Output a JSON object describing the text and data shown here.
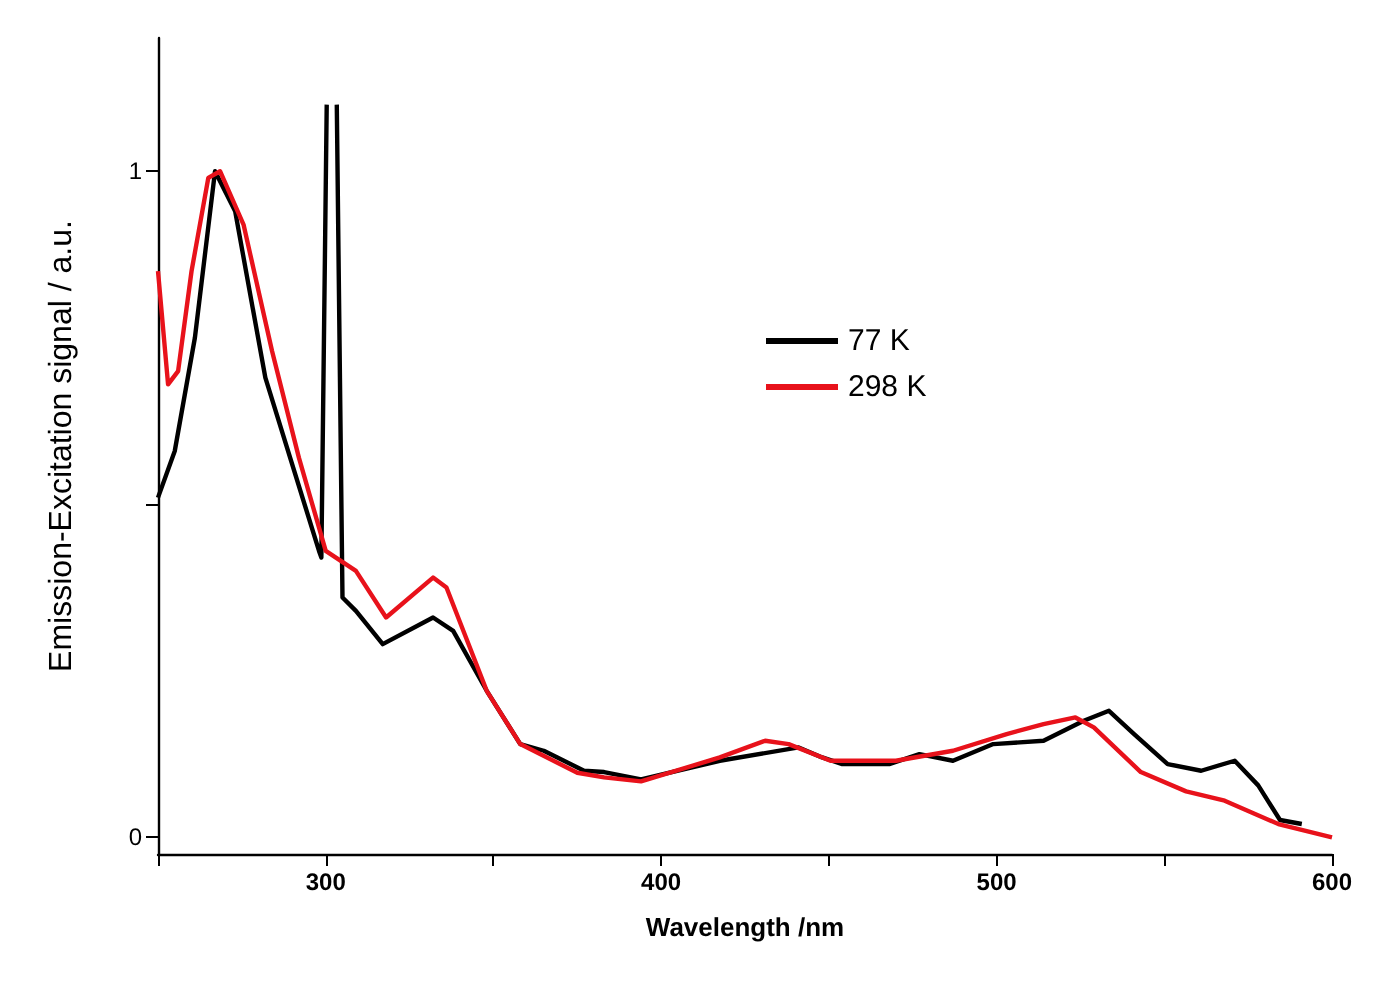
{
  "chart_data": {
    "type": "line",
    "xlabel": "Wavelength /nm",
    "ylabel": "Emission-Excitation signal / a.u.",
    "xlim": [
      250,
      600
    ],
    "xticks": [
      {
        "value": 250,
        "label": null
      },
      300,
      {
        "value": 350,
        "label": null
      },
      400,
      {
        "value": 450,
        "label": null
      },
      500,
      {
        "value": 550,
        "label": null
      },
      600
    ],
    "ylim": [
      -0.025,
      1.2
    ],
    "yticks": [
      0,
      {
        "value": 0.5,
        "label": null
      },
      1
    ],
    "legend": "right",
    "grid": false,
    "marker": "none",
    "line_style": "solid",
    "series": [
      {
        "name": "77 K",
        "color": "#000000",
        "x": [
          250,
          255,
          261,
          267,
          273,
          282,
          298,
          298.7,
          300.3,
          301.6,
          303.3,
          305,
          309,
          317,
          332,
          338,
          348,
          358,
          365,
          377,
          383,
          394,
          417.5,
          441,
          448,
          454,
          468,
          477,
          487,
          499,
          514,
          526,
          533.5,
          541,
          551,
          561,
          571,
          578,
          584.5,
          591
        ],
        "values": [
          0.51,
          0.58,
          0.75,
          1.0,
          0.94,
          0.69,
          0.43,
          0.42,
          1.1,
          null,
          1.1,
          0.36,
          0.34,
          0.29,
          0.33,
          0.31,
          0.22,
          0.14,
          0.13,
          0.1,
          0.098,
          0.087,
          0.115,
          0.135,
          0.12,
          0.11,
          0.11,
          0.125,
          0.115,
          0.14,
          0.145,
          0.175,
          0.19,
          0.155,
          0.11,
          0.1,
          0.115,
          0.078,
          0.026,
          0.02
        ]
      },
      {
        "name": "298 K",
        "color": "#e8121b",
        "x": [
          250,
          253,
          256,
          260,
          265,
          268.5,
          275.5,
          284,
          292,
          300,
          309,
          318,
          332,
          336,
          348,
          358,
          375,
          383,
          394,
          417.5,
          431,
          438,
          450.5,
          470,
          487,
          503,
          514,
          523.5,
          529,
          543,
          556.5,
          568,
          584,
          600
        ],
        "values": [
          0.85,
          0.68,
          0.7,
          0.85,
          0.99,
          1.0,
          0.92,
          0.73,
          0.57,
          0.43,
          0.4,
          0.33,
          0.39,
          0.375,
          0.22,
          0.14,
          0.097,
          0.09,
          0.084,
          0.12,
          0.145,
          0.14,
          0.115,
          0.115,
          0.13,
          0.155,
          0.17,
          0.18,
          0.165,
          0.098,
          0.069,
          0.055,
          0.02,
          0.0
        ]
      }
    ]
  }
}
